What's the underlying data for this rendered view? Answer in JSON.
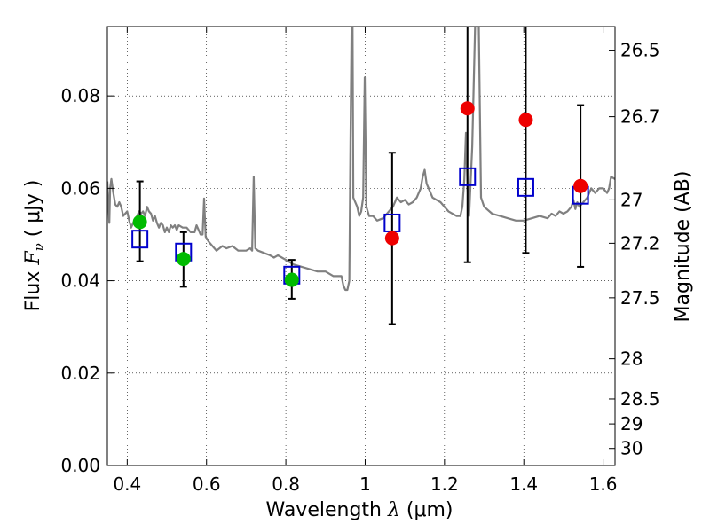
{
  "chart_data": {
    "type": "scatter",
    "xlabel": "Wavelength  λ (μm)",
    "ylabel": "Flux  F_ν  ( μJy )",
    "ylabel_parts": {
      "pre": "Flux ",
      "sym": "F",
      "sub": "ν",
      "post": "  ( μJy )"
    },
    "xlabel_parts": {
      "pre": "Wavelength  ",
      "sym": "λ",
      "post": " (μm)"
    },
    "y2label": "Magnitude (AB)",
    "xlim": [
      0.35,
      1.63
    ],
    "ylim": [
      0.0,
      0.095
    ],
    "x_ticks": [
      0.4,
      0.6,
      0.8,
      1.0,
      1.2,
      1.4,
      1.6
    ],
    "x_tick_labels": [
      "0.4",
      "0.6",
      "0.8",
      "1",
      "1.2",
      "1.4",
      "1.6"
    ],
    "y_ticks": [
      0.0,
      0.02,
      0.04,
      0.06,
      0.08
    ],
    "y_tick_labels": [
      "0.00",
      "0.02",
      "0.04",
      "0.06",
      "0.08"
    ],
    "y2_ticks": [
      {
        "label": "26.5",
        "flux": 0.0899
      },
      {
        "label": "26.7",
        "flux": 0.0755
      },
      {
        "label": "27",
        "flux": 0.0575
      },
      {
        "label": "27.2",
        "flux": 0.0481
      },
      {
        "label": "27.5",
        "flux": 0.0363
      },
      {
        "label": "28",
        "flux": 0.0231
      },
      {
        "label": "28.5",
        "flux": 0.0144
      },
      {
        "label": "29",
        "flux": 0.009
      },
      {
        "label": "30",
        "flux": 0.0037
      }
    ],
    "grid": true,
    "colors": {
      "spectrum": "#808080",
      "model_marker": "#0000cc",
      "green_points": "#00bb00",
      "red_points": "#ee0000",
      "errorbar": "#000000"
    },
    "series": [
      {
        "kind": "spectrum",
        "points": [
          [
            0.35,
            0.0615
          ],
          [
            0.355,
            0.0525
          ],
          [
            0.357,
            0.06
          ],
          [
            0.36,
            0.062
          ],
          [
            0.365,
            0.059
          ],
          [
            0.37,
            0.0565
          ],
          [
            0.375,
            0.056
          ],
          [
            0.38,
            0.057
          ],
          [
            0.385,
            0.056
          ],
          [
            0.39,
            0.054
          ],
          [
            0.395,
            0.0545
          ],
          [
            0.4,
            0.055
          ],
          [
            0.405,
            0.053
          ],
          [
            0.41,
            0.0515
          ],
          [
            0.415,
            0.0525
          ],
          [
            0.42,
            0.053
          ],
          [
            0.425,
            0.054
          ],
          [
            0.43,
            0.055
          ],
          [
            0.435,
            0.0545
          ],
          [
            0.44,
            0.055
          ],
          [
            0.445,
            0.054
          ],
          [
            0.45,
            0.056
          ],
          [
            0.455,
            0.055
          ],
          [
            0.46,
            0.0545
          ],
          [
            0.465,
            0.053
          ],
          [
            0.47,
            0.054
          ],
          [
            0.475,
            0.0525
          ],
          [
            0.48,
            0.0515
          ],
          [
            0.485,
            0.0525
          ],
          [
            0.49,
            0.052
          ],
          [
            0.495,
            0.0505
          ],
          [
            0.5,
            0.0515
          ],
          [
            0.505,
            0.0505
          ],
          [
            0.51,
            0.052
          ],
          [
            0.515,
            0.0515
          ],
          [
            0.52,
            0.052
          ],
          [
            0.525,
            0.051
          ],
          [
            0.53,
            0.052
          ],
          [
            0.54,
            0.0515
          ],
          [
            0.55,
            0.0515
          ],
          [
            0.56,
            0.0505
          ],
          [
            0.57,
            0.0505
          ],
          [
            0.575,
            0.052
          ],
          [
            0.58,
            0.051
          ],
          [
            0.585,
            0.05
          ],
          [
            0.59,
            0.05
          ],
          [
            0.594,
            0.0578
          ],
          [
            0.598,
            0.0495
          ],
          [
            0.605,
            0.0485
          ],
          [
            0.615,
            0.0475
          ],
          [
            0.625,
            0.0465
          ],
          [
            0.64,
            0.0475
          ],
          [
            0.65,
            0.047
          ],
          [
            0.665,
            0.0475
          ],
          [
            0.68,
            0.0465
          ],
          [
            0.7,
            0.0465
          ],
          [
            0.71,
            0.047
          ],
          [
            0.715,
            0.0465
          ],
          [
            0.719,
            0.0625
          ],
          [
            0.723,
            0.047
          ],
          [
            0.73,
            0.0465
          ],
          [
            0.745,
            0.046
          ],
          [
            0.76,
            0.0455
          ],
          [
            0.77,
            0.045
          ],
          [
            0.78,
            0.0455
          ],
          [
            0.79,
            0.045
          ],
          [
            0.8,
            0.0445
          ],
          [
            0.82,
            0.0435
          ],
          [
            0.84,
            0.043
          ],
          [
            0.86,
            0.0425
          ],
          [
            0.88,
            0.042
          ],
          [
            0.9,
            0.042
          ],
          [
            0.92,
            0.041
          ],
          [
            0.93,
            0.041
          ],
          [
            0.94,
            0.041
          ],
          [
            0.945,
            0.039
          ],
          [
            0.95,
            0.038
          ],
          [
            0.955,
            0.038
          ],
          [
            0.96,
            0.04
          ],
          [
            0.963,
            0.07
          ],
          [
            0.966,
            0.098
          ],
          [
            0.968,
            0.098
          ],
          [
            0.97,
            0.058
          ],
          [
            0.98,
            0.056
          ],
          [
            0.985,
            0.054
          ],
          [
            0.99,
            0.055
          ],
          [
            0.995,
            0.058
          ],
          [
            0.999,
            0.084
          ],
          [
            1.003,
            0.056
          ],
          [
            1.01,
            0.054
          ],
          [
            1.02,
            0.054
          ],
          [
            1.03,
            0.053
          ],
          [
            1.045,
            0.0535
          ],
          [
            1.06,
            0.055
          ],
          [
            1.07,
            0.056
          ],
          [
            1.08,
            0.058
          ],
          [
            1.09,
            0.057
          ],
          [
            1.1,
            0.0575
          ],
          [
            1.11,
            0.0565
          ],
          [
            1.12,
            0.057
          ],
          [
            1.13,
            0.058
          ],
          [
            1.14,
            0.06
          ],
          [
            1.145,
            0.0625
          ],
          [
            1.15,
            0.064
          ],
          [
            1.155,
            0.061
          ],
          [
            1.16,
            0.06
          ],
          [
            1.17,
            0.058
          ],
          [
            1.18,
            0.0575
          ],
          [
            1.19,
            0.057
          ],
          [
            1.2,
            0.056
          ],
          [
            1.21,
            0.055
          ],
          [
            1.22,
            0.0545
          ],
          [
            1.23,
            0.054
          ],
          [
            1.24,
            0.054
          ],
          [
            1.245,
            0.056
          ],
          [
            1.25,
            0.062
          ],
          [
            1.254,
            0.072
          ],
          [
            1.258,
            0.06
          ],
          [
            1.262,
            0.054
          ],
          [
            1.27,
            0.069
          ],
          [
            1.278,
            0.098
          ],
          [
            1.286,
            0.098
          ],
          [
            1.292,
            0.058
          ],
          [
            1.3,
            0.056
          ],
          [
            1.32,
            0.0545
          ],
          [
            1.34,
            0.054
          ],
          [
            1.36,
            0.0535
          ],
          [
            1.38,
            0.053
          ],
          [
            1.4,
            0.053
          ],
          [
            1.42,
            0.0535
          ],
          [
            1.44,
            0.054
          ],
          [
            1.46,
            0.0535
          ],
          [
            1.47,
            0.0545
          ],
          [
            1.48,
            0.054
          ],
          [
            1.49,
            0.055
          ],
          [
            1.5,
            0.0545
          ],
          [
            1.51,
            0.055
          ],
          [
            1.52,
            0.056
          ],
          [
            1.525,
            0.0575
          ],
          [
            1.53,
            0.0555
          ],
          [
            1.535,
            0.057
          ],
          [
            1.54,
            0.056
          ],
          [
            1.55,
            0.057
          ],
          [
            1.56,
            0.058
          ],
          [
            1.57,
            0.06
          ],
          [
            1.58,
            0.059
          ],
          [
            1.59,
            0.06
          ],
          [
            1.6,
            0.06
          ],
          [
            1.61,
            0.059
          ],
          [
            1.615,
            0.06
          ],
          [
            1.62,
            0.0625
          ],
          [
            1.63,
            0.062
          ]
        ]
      },
      {
        "kind": "model_squares",
        "x": [
          0.432,
          0.542,
          0.815,
          1.068,
          1.258,
          1.405,
          1.543
        ],
        "y": [
          0.049,
          0.0462,
          0.0412,
          0.0525,
          0.0625,
          0.0602,
          0.0585
        ]
      },
      {
        "kind": "observed_green",
        "x": [
          0.432,
          0.542,
          0.815
        ],
        "y": [
          0.0527,
          0.0447,
          0.0402
        ],
        "err_lo": [
          0.0442,
          0.0387,
          0.0361
        ],
        "err_hi": [
          0.0615,
          0.0505,
          0.0445
        ]
      },
      {
        "kind": "observed_red",
        "x": [
          1.068,
          1.258,
          1.405,
          1.543
        ],
        "y": [
          0.0492,
          0.0773,
          0.0748,
          0.0605
        ],
        "err_lo": [
          0.0306,
          0.044,
          0.046,
          0.043
        ],
        "err_hi": [
          0.0677,
          0.095,
          0.095,
          0.078
        ]
      }
    ]
  }
}
